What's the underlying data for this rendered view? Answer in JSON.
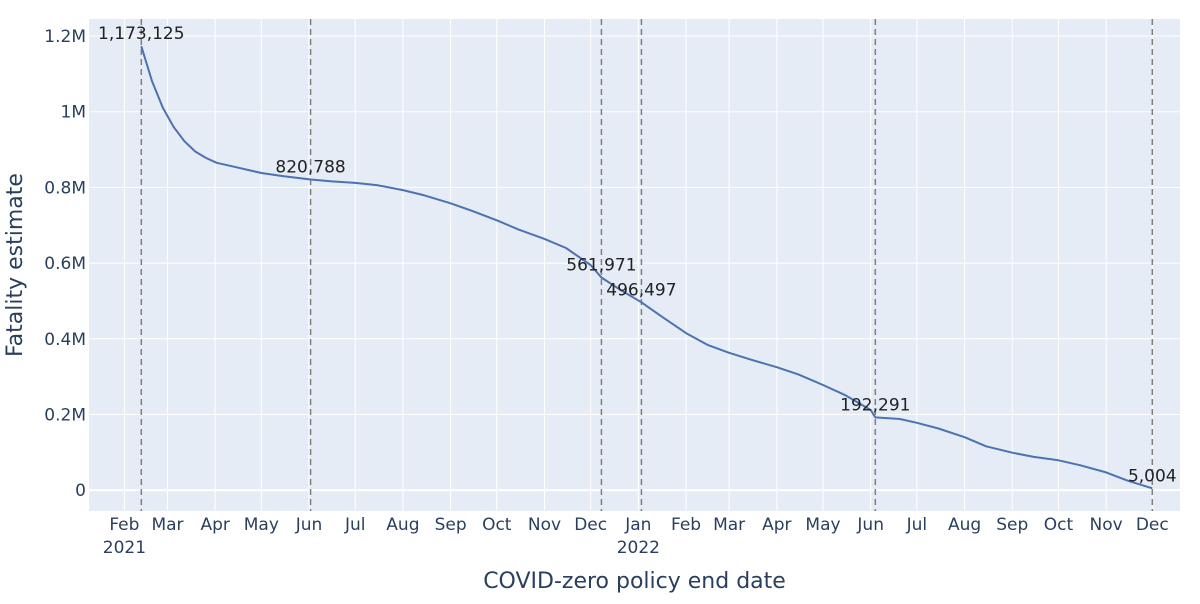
{
  "chart_data": {
    "type": "line",
    "title": "",
    "xlabel": "COVID-zero policy end date",
    "ylabel": "Fatality estimate",
    "ylim": [
      -55000,
      1245000
    ],
    "xlim": [
      "2021-01-09",
      "2022-12-19"
    ],
    "grid": true,
    "legend": "none",
    "colors": {
      "line": "#4c72b0",
      "plot_bg": "#e5ecf6",
      "grid": "#ffffff",
      "vline": "#7f7f7f"
    },
    "y_ticks": [
      {
        "value": 0,
        "label": "0"
      },
      {
        "value": 200000,
        "label": "0.2M"
      },
      {
        "value": 400000,
        "label": "0.4M"
      },
      {
        "value": 600000,
        "label": "0.6M"
      },
      {
        "value": 800000,
        "label": "0.8M"
      },
      {
        "value": 1000000,
        "label": "1M"
      },
      {
        "value": 1200000,
        "label": "1.2M"
      }
    ],
    "x_ticks": [
      {
        "date": "2021-02-01",
        "label": "Feb",
        "year": "2021"
      },
      {
        "date": "2021-03-01",
        "label": "Mar"
      },
      {
        "date": "2021-04-01",
        "label": "Apr"
      },
      {
        "date": "2021-05-01",
        "label": "May"
      },
      {
        "date": "2021-06-01",
        "label": "Jun"
      },
      {
        "date": "2021-07-01",
        "label": "Jul"
      },
      {
        "date": "2021-08-01",
        "label": "Aug"
      },
      {
        "date": "2021-09-01",
        "label": "Sep"
      },
      {
        "date": "2021-10-01",
        "label": "Oct"
      },
      {
        "date": "2021-11-01",
        "label": "Nov"
      },
      {
        "date": "2021-12-01",
        "label": "Dec"
      },
      {
        "date": "2022-01-01",
        "label": "Jan",
        "year": "2022"
      },
      {
        "date": "2022-02-01",
        "label": "Feb"
      },
      {
        "date": "2022-03-01",
        "label": "Mar"
      },
      {
        "date": "2022-04-01",
        "label": "Apr"
      },
      {
        "date": "2022-05-01",
        "label": "May"
      },
      {
        "date": "2022-06-01",
        "label": "Jun"
      },
      {
        "date": "2022-07-01",
        "label": "Jul"
      },
      {
        "date": "2022-08-01",
        "label": "Aug"
      },
      {
        "date": "2022-09-01",
        "label": "Sep"
      },
      {
        "date": "2022-10-01",
        "label": "Oct"
      },
      {
        "date": "2022-11-01",
        "label": "Nov"
      },
      {
        "date": "2022-12-01",
        "label": "Dec"
      }
    ],
    "series": [
      {
        "points": [
          [
            "2021-02-12",
            1173125
          ],
          [
            "2021-02-19",
            1080000
          ],
          [
            "2021-02-26",
            1010000
          ],
          [
            "2021-03-05",
            960000
          ],
          [
            "2021-03-12",
            922000
          ],
          [
            "2021-03-19",
            895000
          ],
          [
            "2021-03-26",
            878000
          ],
          [
            "2021-04-02",
            865000
          ],
          [
            "2021-04-16",
            852000
          ],
          [
            "2021-05-01",
            838000
          ],
          [
            "2021-05-15",
            830000
          ],
          [
            "2021-06-02",
            820788
          ],
          [
            "2021-06-16",
            816000
          ],
          [
            "2021-07-01",
            812000
          ],
          [
            "2021-07-15",
            806000
          ],
          [
            "2021-08-01",
            793000
          ],
          [
            "2021-08-15",
            779000
          ],
          [
            "2021-09-01",
            758000
          ],
          [
            "2021-09-15",
            738000
          ],
          [
            "2021-10-01",
            713000
          ],
          [
            "2021-10-15",
            689000
          ],
          [
            "2021-11-01",
            664000
          ],
          [
            "2021-11-15",
            640000
          ],
          [
            "2021-12-01",
            595000
          ],
          [
            "2021-12-08",
            561971
          ],
          [
            "2021-12-20",
            530000
          ],
          [
            "2022-01-03",
            496497
          ],
          [
            "2022-01-15",
            462000
          ],
          [
            "2022-02-01",
            415000
          ],
          [
            "2022-02-15",
            384000
          ],
          [
            "2022-03-01",
            363000
          ],
          [
            "2022-03-15",
            345000
          ],
          [
            "2022-04-01",
            325000
          ],
          [
            "2022-04-15",
            306000
          ],
          [
            "2022-05-01",
            278000
          ],
          [
            "2022-05-15",
            252000
          ],
          [
            "2022-06-01",
            212000
          ],
          [
            "2022-06-04",
            192291
          ],
          [
            "2022-06-20",
            188000
          ],
          [
            "2022-07-01",
            178000
          ],
          [
            "2022-07-15",
            163000
          ],
          [
            "2022-08-01",
            140000
          ],
          [
            "2022-08-15",
            116000
          ],
          [
            "2022-09-01",
            99000
          ],
          [
            "2022-09-15",
            88000
          ],
          [
            "2022-10-01",
            79000
          ],
          [
            "2022-10-15",
            66000
          ],
          [
            "2022-11-01",
            47000
          ],
          [
            "2022-11-15",
            25000
          ],
          [
            "2022-12-01",
            5004
          ]
        ]
      }
    ],
    "markers": [
      {
        "date": "2021-02-12",
        "value": 1173125,
        "label": "1,173,125"
      },
      {
        "date": "2021-06-02",
        "value": 820788,
        "label": "820,788"
      },
      {
        "date": "2021-12-08",
        "value": 561971,
        "label": "561,971"
      },
      {
        "date": "2022-01-03",
        "value": 496497,
        "label": "496,497"
      },
      {
        "date": "2022-06-04",
        "value": 192291,
        "label": "192,291"
      },
      {
        "date": "2022-12-01",
        "value": 5004,
        "label": "5,004"
      }
    ]
  }
}
